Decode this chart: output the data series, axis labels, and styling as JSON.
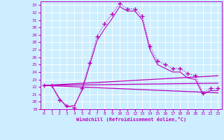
{
  "xlabel": "Windchill (Refroidissement éolien,°C)",
  "background_color": "#cceeff",
  "grid_color": "#ffffff",
  "line_color": "#bb00bb",
  "xlim": [
    -0.5,
    23.5
  ],
  "ylim": [
    19,
    33.5
  ],
  "xticks": [
    0,
    1,
    2,
    3,
    4,
    5,
    6,
    7,
    8,
    9,
    10,
    11,
    12,
    13,
    14,
    15,
    16,
    17,
    18,
    19,
    20,
    21,
    22,
    23
  ],
  "yticks": [
    19,
    20,
    21,
    22,
    23,
    24,
    25,
    26,
    27,
    28,
    29,
    30,
    31,
    32,
    33
  ],
  "curve1_x": [
    0,
    1,
    2,
    3,
    4,
    5,
    6,
    7,
    8,
    9,
    10,
    11,
    12,
    13,
    14,
    15,
    16,
    17,
    18,
    19,
    20,
    21,
    22,
    23
  ],
  "curve1_y": [
    22.2,
    22.2,
    20.2,
    19.5,
    19.2,
    21.8,
    25.2,
    28.8,
    30.5,
    31.8,
    33.2,
    32.5,
    32.5,
    31.5,
    27.5,
    25.5,
    25.0,
    24.5,
    24.5,
    23.8,
    23.5,
    21.2,
    21.8,
    21.8
  ],
  "curve2_x": [
    0,
    1,
    2,
    3,
    4,
    5,
    6,
    7,
    8,
    9,
    10,
    11,
    12,
    13,
    14,
    15,
    16,
    17,
    18,
    19,
    20,
    21,
    22,
    23
  ],
  "curve2_y": [
    22.2,
    22.2,
    20.5,
    19.3,
    19.5,
    21.5,
    24.8,
    28.2,
    29.8,
    31.2,
    32.8,
    32.2,
    32.2,
    31.0,
    27.0,
    25.0,
    24.5,
    24.0,
    24.0,
    23.2,
    23.0,
    21.0,
    21.5,
    21.5
  ],
  "line1_x": [
    0,
    23
  ],
  "line1_y": [
    22.2,
    23.5
  ],
  "line2_x": [
    0,
    23
  ],
  "line2_y": [
    22.2,
    22.5
  ],
  "line3_x": [
    0,
    23
  ],
  "line3_y": [
    22.2,
    21.2
  ]
}
